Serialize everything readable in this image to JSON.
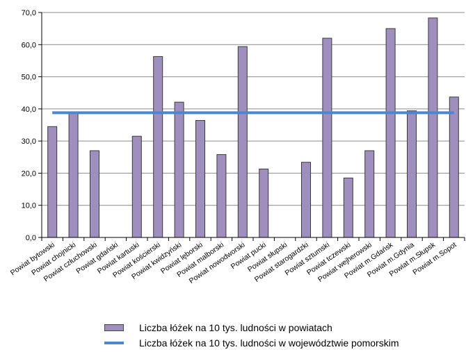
{
  "chart_data": {
    "type": "bar",
    "categories": [
      "Powiat bytowski",
      "Powiat chojnicki",
      "Powiat człuchowski",
      "Powiat gdański",
      "Powiat kartuski",
      "Powiat kościerski",
      "Powiat kwidzyński",
      "Powiat lęborski",
      "Powiat malborski",
      "Powiat nowodworski",
      "Powiat pucki",
      "Powiat słupski",
      "Powiat starogardzki",
      "Powiat sztumski",
      "Powiat tczewski",
      "Powiat wejherowski",
      "Powiat m.Gdańsk",
      "Powiat m.Gdynia",
      "Powiat m.Słupsk",
      "Powiat m.Sopot"
    ],
    "series": [
      {
        "name": "Liczba łóżek na 10 tys. ludności w powiatach",
        "type": "bar",
        "values": [
          34.5,
          39.0,
          27.0,
          0,
          31.5,
          56.3,
          42.1,
          36.4,
          25.8,
          59.4,
          21.3,
          0,
          23.4,
          62.0,
          18.5,
          27.0,
          65.0,
          39.4,
          68.3,
          43.7
        ],
        "color": "#9f8fbf"
      },
      {
        "name": "Liczba łóżek na 10 tys. ludności w województwie pomorskim",
        "type": "line",
        "value": 38.8,
        "color": "#4f86c9"
      }
    ],
    "yticks": [
      "0,0",
      "10,0",
      "20,0",
      "30,0",
      "40,0",
      "50,0",
      "60,0",
      "70,0"
    ],
    "ylim": [
      0,
      70
    ],
    "grid": true,
    "legend_position": "bottom"
  }
}
